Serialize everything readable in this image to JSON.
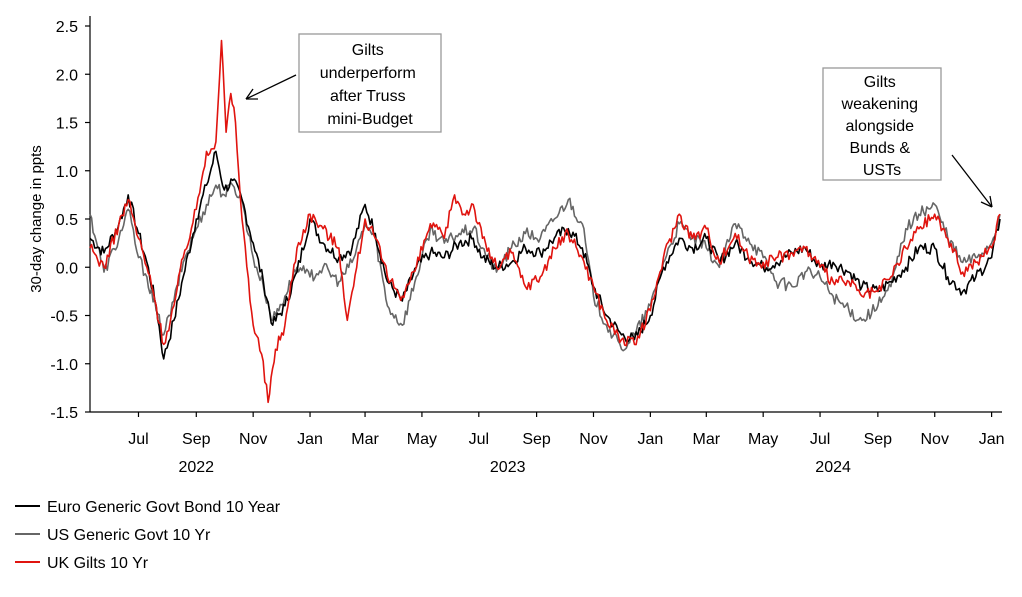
{
  "chart_data": {
    "type": "line",
    "ylabel": "30-day change in ppts",
    "ylim": [
      -1.5,
      2.5
    ],
    "yticks": [
      "2.5",
      "2.0",
      "1.5",
      "1.0",
      "0.5",
      "0.0",
      "-0.5",
      "-1.0",
      "-1.5"
    ],
    "xlim": [
      "2022-05-10",
      "2025-01-10"
    ],
    "xticks": [
      {
        "date": "2022-07-01",
        "label": "Jul"
      },
      {
        "date": "2022-09-01",
        "label": "Sep"
      },
      {
        "date": "2022-11-01",
        "label": "Nov"
      },
      {
        "date": "2023-01-01",
        "label": "Jan"
      },
      {
        "date": "2023-03-01",
        "label": "Mar"
      },
      {
        "date": "2023-05-01",
        "label": "May"
      },
      {
        "date": "2023-07-01",
        "label": "Jul"
      },
      {
        "date": "2023-09-01",
        "label": "Sep"
      },
      {
        "date": "2023-11-01",
        "label": "Nov"
      },
      {
        "date": "2024-01-01",
        "label": "Jan"
      },
      {
        "date": "2024-03-01",
        "label": "Mar"
      },
      {
        "date": "2024-05-01",
        "label": "May"
      },
      {
        "date": "2024-07-01",
        "label": "Jul"
      },
      {
        "date": "2024-09-01",
        "label": "Sep"
      },
      {
        "date": "2024-11-01",
        "label": "Nov"
      },
      {
        "date": "2025-01-01",
        "label": "Jan"
      }
    ],
    "year_labels": [
      {
        "date": "2022-09-01",
        "label": "2022"
      },
      {
        "date": "2023-08-01",
        "label": "2023"
      },
      {
        "date": "2024-07-15",
        "label": "2024"
      }
    ],
    "grid": false,
    "legend_position": "bottom-left",
    "series": [
      {
        "name": "Euro Generic Govt Bond 10 Year",
        "color": "#000000",
        "points": [
          [
            "2022-05-10",
            0.3
          ],
          [
            "2022-05-25",
            0.15
          ],
          [
            "2022-06-10",
            0.45
          ],
          [
            "2022-06-20",
            0.75
          ],
          [
            "2022-07-01",
            0.35
          ],
          [
            "2022-07-10",
            0.05
          ],
          [
            "2022-07-20",
            -0.4
          ],
          [
            "2022-07-28",
            -0.95
          ],
          [
            "2022-08-08",
            -0.55
          ],
          [
            "2022-08-18",
            -0.1
          ],
          [
            "2022-09-01",
            0.5
          ],
          [
            "2022-09-12",
            0.85
          ],
          [
            "2022-09-22",
            1.2
          ],
          [
            "2022-10-01",
            0.8
          ],
          [
            "2022-10-10",
            0.9
          ],
          [
            "2022-10-20",
            0.7
          ],
          [
            "2022-11-01",
            0.25
          ],
          [
            "2022-11-12",
            -0.15
          ],
          [
            "2022-11-22",
            -0.6
          ],
          [
            "2022-12-05",
            -0.4
          ],
          [
            "2022-12-18",
            -0.05
          ],
          [
            "2023-01-01",
            0.5
          ],
          [
            "2023-01-15",
            0.25
          ],
          [
            "2023-02-01",
            0.1
          ],
          [
            "2023-02-15",
            0.2
          ],
          [
            "2023-03-01",
            0.65
          ],
          [
            "2023-03-12",
            0.35
          ],
          [
            "2023-03-25",
            -0.15
          ],
          [
            "2023-04-10",
            -0.35
          ],
          [
            "2023-04-25",
            0.0
          ],
          [
            "2023-05-10",
            0.15
          ],
          [
            "2023-05-25",
            0.1
          ],
          [
            "2023-06-10",
            0.25
          ],
          [
            "2023-06-25",
            0.3
          ],
          [
            "2023-07-05",
            0.1
          ],
          [
            "2023-07-20",
            0.0
          ],
          [
            "2023-08-05",
            0.05
          ],
          [
            "2023-08-20",
            0.2
          ],
          [
            "2023-09-05",
            0.15
          ],
          [
            "2023-09-20",
            0.3
          ],
          [
            "2023-10-05",
            0.4
          ],
          [
            "2023-10-20",
            0.2
          ],
          [
            "2023-11-01",
            -0.2
          ],
          [
            "2023-11-15",
            -0.5
          ],
          [
            "2023-12-01",
            -0.7
          ],
          [
            "2023-12-15",
            -0.75
          ],
          [
            "2024-01-01",
            -0.5
          ],
          [
            "2024-01-15",
            0.0
          ],
          [
            "2024-02-01",
            0.3
          ],
          [
            "2024-02-15",
            0.2
          ],
          [
            "2024-03-01",
            0.3
          ],
          [
            "2024-03-15",
            0.05
          ],
          [
            "2024-04-01",
            0.25
          ],
          [
            "2024-04-15",
            0.1
          ],
          [
            "2024-05-01",
            0.0
          ],
          [
            "2024-05-15",
            0.05
          ],
          [
            "2024-06-01",
            0.15
          ],
          [
            "2024-06-15",
            0.2
          ],
          [
            "2024-07-01",
            0.0
          ],
          [
            "2024-07-15",
            0.05
          ],
          [
            "2024-08-01",
            -0.05
          ],
          [
            "2024-08-15",
            -0.2
          ],
          [
            "2024-09-01",
            -0.25
          ],
          [
            "2024-09-15",
            -0.15
          ],
          [
            "2024-10-01",
            0.0
          ],
          [
            "2024-10-15",
            0.2
          ],
          [
            "2024-11-01",
            0.2
          ],
          [
            "2024-11-15",
            -0.1
          ],
          [
            "2024-12-01",
            -0.25
          ],
          [
            "2024-12-15",
            -0.1
          ],
          [
            "2025-01-01",
            0.1
          ],
          [
            "2025-01-10",
            0.5
          ]
        ]
      },
      {
        "name": "US Generic Govt 10 Yr",
        "color": "#666666",
        "points": [
          [
            "2022-05-10",
            0.55
          ],
          [
            "2022-05-25",
            -0.05
          ],
          [
            "2022-06-10",
            0.3
          ],
          [
            "2022-06-20",
            0.6
          ],
          [
            "2022-07-01",
            0.1
          ],
          [
            "2022-07-10",
            -0.1
          ],
          [
            "2022-07-20",
            -0.45
          ],
          [
            "2022-07-28",
            -0.7
          ],
          [
            "2022-08-08",
            -0.35
          ],
          [
            "2022-08-18",
            0.05
          ],
          [
            "2022-09-01",
            0.4
          ],
          [
            "2022-09-12",
            0.65
          ],
          [
            "2022-09-22",
            0.85
          ],
          [
            "2022-10-01",
            0.75
          ],
          [
            "2022-10-10",
            0.85
          ],
          [
            "2022-10-20",
            0.7
          ],
          [
            "2022-11-01",
            0.1
          ],
          [
            "2022-11-12",
            -0.2
          ],
          [
            "2022-11-22",
            -0.55
          ],
          [
            "2022-12-05",
            -0.3
          ],
          [
            "2022-12-18",
            0.0
          ],
          [
            "2023-01-01",
            -0.1
          ],
          [
            "2023-01-15",
            0.0
          ],
          [
            "2023-02-01",
            -0.15
          ],
          [
            "2023-02-15",
            0.05
          ],
          [
            "2023-03-01",
            0.45
          ],
          [
            "2023-03-12",
            0.3
          ],
          [
            "2023-03-25",
            -0.4
          ],
          [
            "2023-04-10",
            -0.6
          ],
          [
            "2023-04-25",
            -0.1
          ],
          [
            "2023-05-10",
            0.4
          ],
          [
            "2023-05-25",
            0.25
          ],
          [
            "2023-06-10",
            0.35
          ],
          [
            "2023-06-25",
            0.4
          ],
          [
            "2023-07-05",
            0.2
          ],
          [
            "2023-07-20",
            -0.05
          ],
          [
            "2023-08-05",
            0.2
          ],
          [
            "2023-08-20",
            0.35
          ],
          [
            "2023-09-05",
            0.3
          ],
          [
            "2023-09-20",
            0.5
          ],
          [
            "2023-10-05",
            0.7
          ],
          [
            "2023-10-20",
            0.45
          ],
          [
            "2023-11-01",
            -0.3
          ],
          [
            "2023-11-15",
            -0.6
          ],
          [
            "2023-12-01",
            -0.85
          ],
          [
            "2023-12-15",
            -0.7
          ],
          [
            "2024-01-01",
            -0.4
          ],
          [
            "2024-01-15",
            0.05
          ],
          [
            "2024-02-01",
            0.45
          ],
          [
            "2024-02-15",
            0.3
          ],
          [
            "2024-03-01",
            0.2
          ],
          [
            "2024-03-15",
            0.0
          ],
          [
            "2024-04-01",
            0.45
          ],
          [
            "2024-04-15",
            0.3
          ],
          [
            "2024-05-01",
            0.1
          ],
          [
            "2024-05-15",
            -0.15
          ],
          [
            "2024-06-01",
            -0.2
          ],
          [
            "2024-06-15",
            -0.05
          ],
          [
            "2024-07-01",
            -0.1
          ],
          [
            "2024-07-15",
            -0.3
          ],
          [
            "2024-08-01",
            -0.45
          ],
          [
            "2024-08-15",
            -0.55
          ],
          [
            "2024-09-01",
            -0.4
          ],
          [
            "2024-09-15",
            -0.2
          ],
          [
            "2024-10-01",
            0.4
          ],
          [
            "2024-10-15",
            0.55
          ],
          [
            "2024-11-01",
            0.65
          ],
          [
            "2024-11-15",
            0.3
          ],
          [
            "2024-12-01",
            0.05
          ],
          [
            "2024-12-15",
            0.1
          ],
          [
            "2025-01-01",
            0.25
          ],
          [
            "2025-01-10",
            0.55
          ]
        ]
      },
      {
        "name": "UK Gilts 10 Yr",
        "color": "#e0140f",
        "points": [
          [
            "2022-05-10",
            0.2
          ],
          [
            "2022-05-25",
            0.0
          ],
          [
            "2022-06-10",
            0.45
          ],
          [
            "2022-06-20",
            0.7
          ],
          [
            "2022-07-01",
            0.3
          ],
          [
            "2022-07-10",
            0.0
          ],
          [
            "2022-07-20",
            -0.4
          ],
          [
            "2022-07-28",
            -0.8
          ],
          [
            "2022-08-08",
            -0.4
          ],
          [
            "2022-08-18",
            0.1
          ],
          [
            "2022-09-01",
            0.6
          ],
          [
            "2022-09-12",
            1.2
          ],
          [
            "2022-09-22",
            1.3
          ],
          [
            "2022-09-28",
            2.35
          ],
          [
            "2022-10-03",
            1.4
          ],
          [
            "2022-10-08",
            1.8
          ],
          [
            "2022-10-13",
            1.5
          ],
          [
            "2022-10-20",
            0.5
          ],
          [
            "2022-11-01",
            -0.6
          ],
          [
            "2022-11-10",
            -0.9
          ],
          [
            "2022-11-17",
            -1.4
          ],
          [
            "2022-11-25",
            -0.85
          ],
          [
            "2022-12-05",
            -0.6
          ],
          [
            "2022-12-18",
            0.2
          ],
          [
            "2023-01-01",
            0.55
          ],
          [
            "2023-01-15",
            0.4
          ],
          [
            "2023-02-01",
            0.2
          ],
          [
            "2023-02-10",
            -0.55
          ],
          [
            "2023-02-20",
            0.0
          ],
          [
            "2023-03-01",
            0.5
          ],
          [
            "2023-03-12",
            0.3
          ],
          [
            "2023-03-25",
            -0.1
          ],
          [
            "2023-04-10",
            -0.3
          ],
          [
            "2023-04-25",
            0.0
          ],
          [
            "2023-05-10",
            0.45
          ],
          [
            "2023-05-25",
            0.3
          ],
          [
            "2023-06-05",
            0.75
          ],
          [
            "2023-06-15",
            0.55
          ],
          [
            "2023-06-25",
            0.65
          ],
          [
            "2023-07-05",
            0.3
          ],
          [
            "2023-07-20",
            0.0
          ],
          [
            "2023-08-05",
            0.15
          ],
          [
            "2023-08-20",
            -0.2
          ],
          [
            "2023-09-05",
            -0.1
          ],
          [
            "2023-09-20",
            0.2
          ],
          [
            "2023-10-05",
            0.35
          ],
          [
            "2023-10-20",
            0.1
          ],
          [
            "2023-11-01",
            -0.2
          ],
          [
            "2023-11-15",
            -0.55
          ],
          [
            "2023-12-01",
            -0.75
          ],
          [
            "2023-12-15",
            -0.8
          ],
          [
            "2024-01-01",
            -0.45
          ],
          [
            "2024-01-15",
            0.1
          ],
          [
            "2024-02-01",
            0.55
          ],
          [
            "2024-02-15",
            0.3
          ],
          [
            "2024-03-01",
            0.4
          ],
          [
            "2024-03-15",
            0.05
          ],
          [
            "2024-04-01",
            0.35
          ],
          [
            "2024-04-15",
            0.1
          ],
          [
            "2024-05-01",
            0.05
          ],
          [
            "2024-05-15",
            0.1
          ],
          [
            "2024-06-01",
            0.15
          ],
          [
            "2024-06-15",
            0.2
          ],
          [
            "2024-07-01",
            0.0
          ],
          [
            "2024-07-15",
            -0.15
          ],
          [
            "2024-08-01",
            -0.15
          ],
          [
            "2024-08-15",
            -0.3
          ],
          [
            "2024-09-01",
            -0.25
          ],
          [
            "2024-09-15",
            -0.1
          ],
          [
            "2024-10-01",
            0.2
          ],
          [
            "2024-10-15",
            0.4
          ],
          [
            "2024-11-01",
            0.55
          ],
          [
            "2024-11-15",
            0.3
          ],
          [
            "2024-12-01",
            -0.05
          ],
          [
            "2024-12-15",
            0.05
          ],
          [
            "2025-01-01",
            0.2
          ],
          [
            "2025-01-10",
            0.55
          ]
        ]
      }
    ],
    "annotations": [
      {
        "lines": [
          "Gilts",
          "underperform",
          "after Truss",
          "mini-Budget"
        ]
      },
      {
        "lines": [
          "Gilts",
          "weakening",
          "alongside",
          "Bunds &",
          "USTs"
        ]
      }
    ]
  }
}
